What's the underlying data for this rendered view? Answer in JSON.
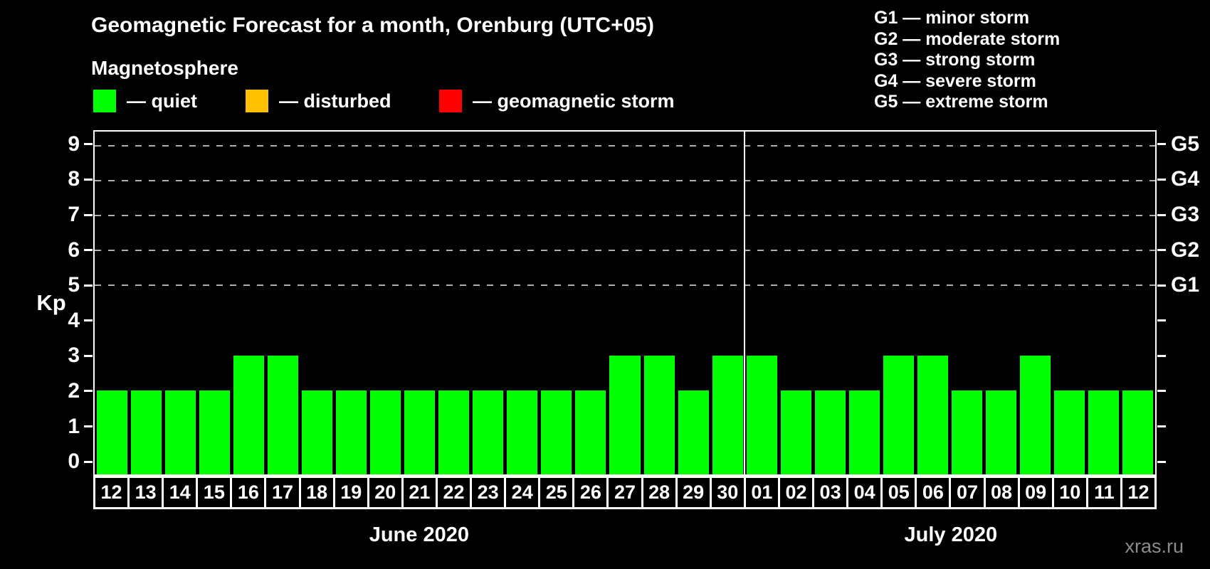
{
  "header": {
    "title": "Geomagnetic Forecast for a month, Orenburg (UTC+05)",
    "subtitle": "Magnetosphere"
  },
  "kp_legend": {
    "items": [
      {
        "name": "quiet",
        "label": "— quiet",
        "color": "#00ff00"
      },
      {
        "name": "disturbed",
        "label": "— disturbed",
        "color": "#ffc000"
      },
      {
        "name": "geomagnetic-storm",
        "label": "— geomagnetic storm",
        "color": "#ff0000"
      }
    ]
  },
  "storm_legend": {
    "items": [
      "G1 — minor storm",
      "G2 — moderate storm",
      "G3 — strong storm",
      "G4 — severe storm",
      "G5 — extreme storm"
    ]
  },
  "watermark": "xras.ru",
  "chart_data": {
    "type": "bar",
    "title": "Geomagnetic Forecast for a month, Orenburg (UTC+05)",
    "ylabel": "Kp",
    "ylim": [
      0,
      9
    ],
    "yticks": [
      0,
      1,
      2,
      3,
      4,
      5,
      6,
      7,
      8,
      9
    ],
    "gridlines": [
      5,
      6,
      7,
      8,
      9
    ],
    "grid_style": "dashed",
    "legend_position": "top",
    "right_axis": [
      {
        "label": "G5",
        "value": 9
      },
      {
        "label": "G4",
        "value": 8
      },
      {
        "label": "G3",
        "value": 7
      },
      {
        "label": "G2",
        "value": 6
      },
      {
        "label": "G1",
        "value": 5
      }
    ],
    "bar_color": "#00ff00",
    "months": [
      {
        "label": "June 2020",
        "count": 19
      },
      {
        "label": "July 2020",
        "count": 12
      }
    ],
    "categories": [
      "12",
      "13",
      "14",
      "15",
      "16",
      "17",
      "18",
      "19",
      "20",
      "21",
      "22",
      "23",
      "24",
      "25",
      "26",
      "27",
      "28",
      "29",
      "30",
      "01",
      "02",
      "03",
      "04",
      "05",
      "06",
      "07",
      "08",
      "09",
      "10",
      "11",
      "12"
    ],
    "values": [
      2,
      2,
      2,
      2,
      3,
      3,
      2,
      2,
      2,
      2,
      2,
      2,
      2,
      2,
      2,
      3,
      3,
      2,
      3,
      3,
      2,
      2,
      2,
      3,
      3,
      2,
      2,
      3,
      2,
      2,
      2
    ]
  }
}
